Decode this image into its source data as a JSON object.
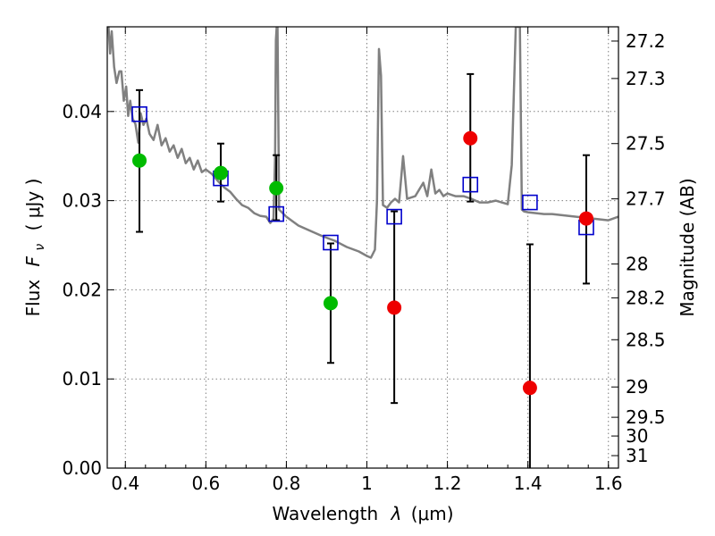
{
  "chart_data": {
    "type": "scatter",
    "xlabel_prefix": "Wavelength",
    "xlabel_symbol": "λ",
    "xlabel_unit": "(μm)",
    "ylabel_prefix": "Flux",
    "ylabel_symbol": "F",
    "ylabel_subscript": "ν",
    "ylabel_unit": "( μJy )",
    "y2label": "Magnitude (AB)",
    "xlim": [
      0.355,
      1.625
    ],
    "ylim": [
      0.0,
      0.0495
    ],
    "grid": true,
    "x_ticks": [
      0.4,
      0.6,
      0.8,
      1.0,
      1.2,
      1.4,
      1.6
    ],
    "x_tick_labels": [
      "0.4",
      "0.6",
      "0.8",
      "1",
      "1.2",
      "1.4",
      "1.6"
    ],
    "y_ticks": [
      0.0,
      0.01,
      0.02,
      0.03,
      0.04
    ],
    "y_tick_labels": [
      "0.00",
      "0.01",
      "0.02",
      "0.03",
      "0.04"
    ],
    "mag_ticks": [
      27.2,
      27.3,
      27.5,
      27.7,
      28,
      28.2,
      28.5,
      29,
      29.5,
      30,
      31
    ],
    "mag_tick_labels": [
      "27.2",
      "27.3",
      "27.5",
      "27.7",
      "28",
      "28.2",
      "28.5",
      "29",
      "29.5",
      "30",
      "31"
    ],
    "mag_tick_flux": [
      0.0479,
      0.0437,
      0.0364,
      0.0302,
      0.0229,
      0.0191,
      0.0144,
      0.0091,
      0.0057,
      0.0036,
      0.0014
    ],
    "series": [
      {
        "kind": "template_spectrum",
        "color": "#808080",
        "x": [
          0.358,
          0.362,
          0.366,
          0.372,
          0.378,
          0.385,
          0.39,
          0.396,
          0.402,
          0.407,
          0.412,
          0.418,
          0.425,
          0.432,
          0.438,
          0.445,
          0.452,
          0.46,
          0.47,
          0.48,
          0.49,
          0.5,
          0.51,
          0.52,
          0.53,
          0.54,
          0.55,
          0.56,
          0.57,
          0.58,
          0.59,
          0.6,
          0.615,
          0.63,
          0.645,
          0.66,
          0.675,
          0.69,
          0.705,
          0.72,
          0.735,
          0.75,
          0.76,
          0.768,
          0.772,
          0.774,
          0.776,
          0.778,
          0.782,
          0.8,
          0.83,
          0.86,
          0.89,
          0.92,
          0.95,
          0.98,
          1.0,
          1.01,
          1.02,
          1.025,
          1.03,
          1.035,
          1.04,
          1.05,
          1.06,
          1.07,
          1.08,
          1.09,
          1.1,
          1.12,
          1.14,
          1.15,
          1.16,
          1.17,
          1.18,
          1.19,
          1.2,
          1.22,
          1.24,
          1.26,
          1.28,
          1.3,
          1.32,
          1.35,
          1.36,
          1.37,
          1.375,
          1.38,
          1.385,
          1.39,
          1.4,
          1.42,
          1.44,
          1.46,
          1.48,
          1.5,
          1.52,
          1.54,
          1.56,
          1.58,
          1.6,
          1.625
        ],
        "y": [
          0.0495,
          0.0465,
          0.049,
          0.045,
          0.0432,
          0.0445,
          0.0445,
          0.0412,
          0.0428,
          0.0395,
          0.0412,
          0.0392,
          0.0386,
          0.0365,
          0.0398,
          0.0385,
          0.0392,
          0.0375,
          0.0368,
          0.0385,
          0.0362,
          0.037,
          0.0355,
          0.0362,
          0.0348,
          0.0358,
          0.0342,
          0.0348,
          0.0335,
          0.0345,
          0.0332,
          0.0335,
          0.033,
          0.0322,
          0.0315,
          0.031,
          0.0302,
          0.0295,
          0.0292,
          0.0286,
          0.0283,
          0.0282,
          0.0275,
          0.028,
          0.035,
          0.048,
          0.0495,
          0.0495,
          0.029,
          0.0282,
          0.0272,
          0.0266,
          0.026,
          0.0255,
          0.0248,
          0.0243,
          0.0238,
          0.0236,
          0.0245,
          0.03,
          0.047,
          0.044,
          0.0295,
          0.0292,
          0.0298,
          0.0302,
          0.0298,
          0.035,
          0.0302,
          0.0305,
          0.032,
          0.0305,
          0.0335,
          0.0308,
          0.0312,
          0.0305,
          0.0308,
          0.0305,
          0.0305,
          0.0302,
          0.0298,
          0.0298,
          0.03,
          0.0296,
          0.034,
          0.0495,
          0.0495,
          0.0495,
          0.029,
          0.0288,
          0.0287,
          0.0286,
          0.0285,
          0.0285,
          0.0284,
          0.0283,
          0.0282,
          0.0281,
          0.028,
          0.0279,
          0.0278,
          0.0282
        ]
      },
      {
        "kind": "model_photometry",
        "color": "#0000cc",
        "marker": "open-square",
        "x": [
          0.435,
          0.637,
          0.775,
          0.91,
          1.068,
          1.257,
          1.405,
          1.545
        ],
        "y": [
          0.0397,
          0.0325,
          0.0285,
          0.0253,
          0.0282,
          0.0318,
          0.0298,
          0.027
        ]
      },
      {
        "kind": "observed_optical",
        "color": "#00bb00",
        "marker": "filled-circle",
        "x": [
          0.435,
          0.637,
          0.775,
          0.91
        ],
        "y": [
          0.0345,
          0.0331,
          0.0314,
          0.0185
        ],
        "err": [
          [
            0.0265,
            0.0424
          ],
          [
            0.0299,
            0.0364
          ],
          [
            0.0278,
            0.0351
          ],
          [
            0.0118,
            0.0252
          ]
        ]
      },
      {
        "kind": "observed_nir",
        "color": "#ee0000",
        "marker": "filled-circle",
        "x": [
          1.068,
          1.257,
          1.405,
          1.545
        ],
        "y": [
          0.018,
          0.037,
          0.009,
          0.028
        ],
        "err": [
          [
            0.0073,
            0.0288
          ],
          [
            0.0299,
            0.0442
          ],
          [
            0.0,
            0.0251
          ],
          [
            0.0207,
            0.0351
          ]
        ]
      }
    ]
  }
}
